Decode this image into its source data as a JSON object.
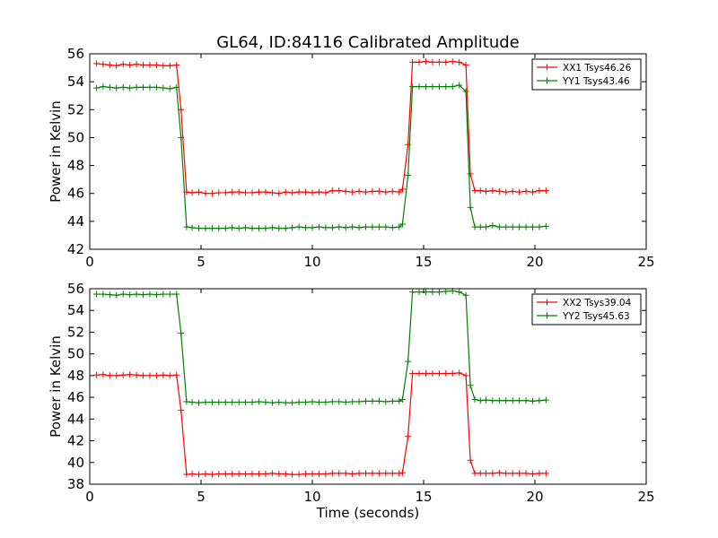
{
  "figure": {
    "title": "GL64, ID:84116 Calibrated Amplitude"
  },
  "chart_data": [
    {
      "type": "line",
      "title": "GL64, ID:84116 Calibrated Amplitude",
      "xlabel": "",
      "ylabel": "Power in Kelvin",
      "xlim": [
        0,
        25
      ],
      "ylim": [
        42,
        56
      ],
      "xticks": [
        "0",
        "5",
        "10",
        "15",
        "20",
        "25"
      ],
      "yticks": [
        "42",
        "44",
        "46",
        "48",
        "50",
        "52",
        "54",
        "56"
      ],
      "legend_position": "top-right",
      "series": [
        {
          "name": "XX1 Tsys46.26",
          "color": "#ff0000",
          "x": [
            0.3,
            0.6,
            0.9,
            1.2,
            1.5,
            1.8,
            2.1,
            2.4,
            2.7,
            3.0,
            3.3,
            3.6,
            3.9,
            4.1,
            4.35,
            4.6,
            4.9,
            5.2,
            5.5,
            5.8,
            6.1,
            6.4,
            6.7,
            7.0,
            7.3,
            7.6,
            7.9,
            8.2,
            8.5,
            8.8,
            9.1,
            9.4,
            9.7,
            10.0,
            10.3,
            10.6,
            10.9,
            11.2,
            11.5,
            11.8,
            12.1,
            12.4,
            12.7,
            13.0,
            13.3,
            13.6,
            13.9,
            14.05,
            14.3,
            14.5,
            14.8,
            15.1,
            15.4,
            15.7,
            16.0,
            16.3,
            16.6,
            16.9,
            17.1,
            17.3,
            17.55,
            17.8,
            18.1,
            18.4,
            18.7,
            19.0,
            19.3,
            19.6,
            19.9,
            20.2,
            20.5
          ],
          "y": [
            55.3,
            55.25,
            55.2,
            55.15,
            55.25,
            55.2,
            55.25,
            55.2,
            55.2,
            55.2,
            55.15,
            55.15,
            55.2,
            52.0,
            46.1,
            46.05,
            46.1,
            46.0,
            46.0,
            46.05,
            46.05,
            46.1,
            46.1,
            46.05,
            46.05,
            46.1,
            46.1,
            46.05,
            46.0,
            46.1,
            46.05,
            46.1,
            46.1,
            46.05,
            46.1,
            46.05,
            46.2,
            46.2,
            46.15,
            46.1,
            46.15,
            46.1,
            46.15,
            46.15,
            46.1,
            46.15,
            46.1,
            46.3,
            49.5,
            55.4,
            55.4,
            55.45,
            55.4,
            55.4,
            55.4,
            55.45,
            55.4,
            55.2,
            47.4,
            46.2,
            46.2,
            46.15,
            46.2,
            46.15,
            46.1,
            46.15,
            46.1,
            46.15,
            46.1,
            46.2,
            46.2
          ]
        },
        {
          "name": "YY1 Tsys43.46",
          "color": "#008000",
          "x": [
            0.3,
            0.6,
            0.9,
            1.2,
            1.5,
            1.8,
            2.1,
            2.4,
            2.7,
            3.0,
            3.3,
            3.6,
            3.9,
            4.1,
            4.35,
            4.6,
            4.9,
            5.2,
            5.5,
            5.8,
            6.1,
            6.4,
            6.7,
            7.0,
            7.3,
            7.6,
            7.9,
            8.2,
            8.5,
            8.8,
            9.1,
            9.4,
            9.7,
            10.0,
            10.3,
            10.6,
            10.9,
            11.2,
            11.5,
            11.8,
            12.1,
            12.4,
            12.7,
            13.0,
            13.3,
            13.6,
            13.9,
            14.05,
            14.3,
            14.5,
            14.8,
            15.1,
            15.4,
            15.7,
            16.0,
            16.3,
            16.6,
            16.9,
            17.1,
            17.3,
            17.55,
            17.8,
            18.1,
            18.4,
            18.7,
            19.0,
            19.3,
            19.6,
            19.9,
            20.2,
            20.5
          ],
          "y": [
            53.55,
            53.65,
            53.6,
            53.55,
            53.6,
            53.55,
            53.6,
            53.6,
            53.6,
            53.6,
            53.55,
            53.5,
            53.6,
            50.0,
            43.6,
            43.55,
            43.5,
            43.5,
            43.5,
            43.5,
            43.5,
            43.55,
            43.5,
            43.55,
            43.5,
            43.5,
            43.5,
            43.55,
            43.5,
            43.5,
            43.55,
            43.6,
            43.55,
            43.55,
            43.6,
            43.55,
            43.55,
            43.6,
            43.55,
            43.6,
            43.55,
            43.6,
            43.6,
            43.6,
            43.6,
            43.55,
            43.6,
            43.8,
            47.3,
            53.65,
            53.65,
            53.65,
            53.65,
            53.65,
            53.65,
            53.65,
            53.75,
            53.3,
            45.0,
            43.6,
            43.6,
            43.6,
            43.7,
            43.6,
            43.6,
            43.6,
            43.6,
            43.6,
            43.6,
            43.6,
            43.65
          ]
        }
      ]
    },
    {
      "type": "line",
      "title": "",
      "xlabel": "Time (seconds)",
      "ylabel": "Power in Kelvin",
      "xlim": [
        0,
        25
      ],
      "ylim": [
        38,
        56
      ],
      "xticks": [
        "0",
        "5",
        "10",
        "15",
        "20",
        "25"
      ],
      "yticks": [
        "38",
        "40",
        "42",
        "44",
        "46",
        "48",
        "50",
        "52",
        "54",
        "56"
      ],
      "legend_position": "top-right",
      "series": [
        {
          "name": "XX2 Tsys39.04",
          "color": "#ff0000",
          "x": [
            0.3,
            0.6,
            0.9,
            1.2,
            1.5,
            1.8,
            2.1,
            2.4,
            2.7,
            3.0,
            3.3,
            3.6,
            3.9,
            4.1,
            4.35,
            4.6,
            4.9,
            5.2,
            5.5,
            5.8,
            6.1,
            6.4,
            6.7,
            7.0,
            7.3,
            7.6,
            7.9,
            8.2,
            8.5,
            8.8,
            9.1,
            9.4,
            9.7,
            10.0,
            10.3,
            10.6,
            10.9,
            11.2,
            11.5,
            11.8,
            12.1,
            12.4,
            12.7,
            13.0,
            13.3,
            13.6,
            13.9,
            14.05,
            14.3,
            14.5,
            14.8,
            15.1,
            15.4,
            15.7,
            16.0,
            16.3,
            16.6,
            16.9,
            17.1,
            17.3,
            17.55,
            17.8,
            18.1,
            18.4,
            18.7,
            19.0,
            19.3,
            19.6,
            19.9,
            20.2,
            20.5
          ],
          "y": [
            48.05,
            48.1,
            48.0,
            48.0,
            48.05,
            48.1,
            48.05,
            48.0,
            48.0,
            48.0,
            48.05,
            48.0,
            48.05,
            44.8,
            38.9,
            38.95,
            38.9,
            38.95,
            38.9,
            38.95,
            38.95,
            38.95,
            38.95,
            38.95,
            38.95,
            38.95,
            38.95,
            39.0,
            38.95,
            38.95,
            38.9,
            38.9,
            38.95,
            38.95,
            38.95,
            38.95,
            39.0,
            39.0,
            39.0,
            38.95,
            39.0,
            39.0,
            39.0,
            39.0,
            39.0,
            39.0,
            39.0,
            39.05,
            42.4,
            48.2,
            48.2,
            48.2,
            48.2,
            48.2,
            48.2,
            48.2,
            48.25,
            48.0,
            40.2,
            39.0,
            39.0,
            39.0,
            39.0,
            39.05,
            39.0,
            39.0,
            39.0,
            39.0,
            38.95,
            39.0,
            39.0
          ]
        },
        {
          "name": "YY2 Tsys45.63",
          "color": "#008000",
          "x": [
            0.3,
            0.6,
            0.9,
            1.2,
            1.5,
            1.8,
            2.1,
            2.4,
            2.7,
            3.0,
            3.3,
            3.6,
            3.9,
            4.1,
            4.35,
            4.6,
            4.9,
            5.2,
            5.5,
            5.8,
            6.1,
            6.4,
            6.7,
            7.0,
            7.3,
            7.6,
            7.9,
            8.2,
            8.5,
            8.8,
            9.1,
            9.4,
            9.7,
            10.0,
            10.3,
            10.6,
            10.9,
            11.2,
            11.5,
            11.8,
            12.1,
            12.4,
            12.7,
            13.0,
            13.3,
            13.6,
            13.9,
            14.05,
            14.3,
            14.5,
            14.8,
            15.1,
            15.4,
            15.7,
            16.0,
            16.3,
            16.6,
            16.9,
            17.1,
            17.3,
            17.55,
            17.8,
            18.1,
            18.4,
            18.7,
            19.0,
            19.3,
            19.6,
            19.9,
            20.2,
            20.5
          ],
          "y": [
            55.5,
            55.5,
            55.45,
            55.4,
            55.5,
            55.45,
            55.5,
            55.45,
            55.5,
            55.45,
            55.5,
            55.5,
            55.5,
            51.9,
            45.6,
            45.55,
            45.5,
            45.55,
            45.55,
            45.55,
            45.55,
            45.55,
            45.55,
            45.55,
            45.55,
            45.6,
            45.55,
            45.5,
            45.55,
            45.5,
            45.5,
            45.55,
            45.55,
            45.6,
            45.55,
            45.55,
            45.6,
            45.6,
            45.55,
            45.6,
            45.6,
            45.65,
            45.65,
            45.65,
            45.6,
            45.65,
            45.65,
            45.8,
            49.3,
            55.7,
            55.7,
            55.7,
            55.7,
            55.7,
            55.75,
            55.8,
            55.7,
            55.4,
            47.1,
            45.8,
            45.7,
            45.75,
            45.7,
            45.7,
            45.7,
            45.7,
            45.7,
            45.7,
            45.65,
            45.7,
            45.75
          ]
        }
      ]
    }
  ]
}
